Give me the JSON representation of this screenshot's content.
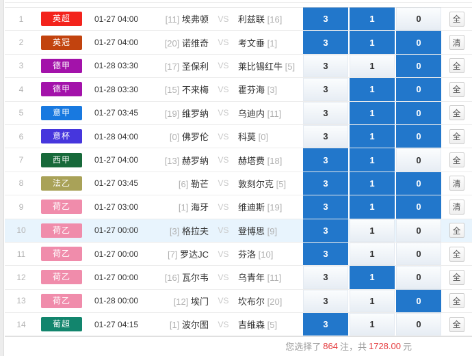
{
  "colors": {
    "cell-selected": "#2277cb",
    "row-highlight": "#e8f4fd",
    "footer-red": "#e4393c"
  },
  "labels": {
    "vs": "VS",
    "odds": [
      "3",
      "1",
      "0"
    ]
  },
  "rows": [
    {
      "num": "1",
      "league": "英超",
      "league_color": "#f3231c",
      "time": "01-27 04:00",
      "home_rank": "[11]",
      "home": "埃弗顿",
      "away": "利兹联",
      "away_rank": "[16]",
      "selected": [
        true,
        true,
        false
      ],
      "action": "全",
      "highlight": false
    },
    {
      "num": "2",
      "league": "英冠",
      "league_color": "#c2430e",
      "time": "01-27 04:00",
      "home_rank": "[20]",
      "home": "诺维奇",
      "away": "考文垂",
      "away_rank": "[1]",
      "selected": [
        true,
        true,
        true
      ],
      "action": "清",
      "highlight": false
    },
    {
      "num": "3",
      "league": "德甲",
      "league_color": "#a312aa",
      "time": "01-28 03:30",
      "home_rank": "[17]",
      "home": "圣保利",
      "away": "莱比锡红牛",
      "away_rank": "[5]",
      "selected": [
        false,
        false,
        true
      ],
      "action": "全",
      "highlight": false
    },
    {
      "num": "4",
      "league": "德甲",
      "league_color": "#a312aa",
      "time": "01-28 03:30",
      "home_rank": "[15]",
      "home": "不来梅",
      "away": "霍芬海",
      "away_rank": "[3]",
      "selected": [
        false,
        true,
        true
      ],
      "action": "全",
      "highlight": false
    },
    {
      "num": "5",
      "league": "意甲",
      "league_color": "#1879e0",
      "time": "01-27 03:45",
      "home_rank": "[19]",
      "home": "维罗纳",
      "away": "乌迪内",
      "away_rank": "[11]",
      "selected": [
        false,
        true,
        true
      ],
      "action": "全",
      "highlight": false
    },
    {
      "num": "6",
      "league": "意杯",
      "league_color": "#4636dd",
      "time": "01-28 04:00",
      "home_rank": "[0]",
      "home": "佛罗伦",
      "away": "科莫",
      "away_rank": "[0]",
      "selected": [
        false,
        true,
        true
      ],
      "action": "全",
      "highlight": false
    },
    {
      "num": "7",
      "league": "西甲",
      "league_color": "#17693a",
      "time": "01-27 04:00",
      "home_rank": "[13]",
      "home": "赫罗纳",
      "away": "赫塔费",
      "away_rank": "[18]",
      "selected": [
        true,
        true,
        false
      ],
      "action": "全",
      "highlight": false
    },
    {
      "num": "8",
      "league": "法乙",
      "league_color": "#a9a258",
      "time": "01-27 03:45",
      "home_rank": "[6]",
      "home": "勒芒",
      "away": "敦刻尔克",
      "away_rank": "[5]",
      "selected": [
        true,
        true,
        true
      ],
      "action": "清",
      "highlight": false
    },
    {
      "num": "9",
      "league": "荷乙",
      "league_color": "#f08cab",
      "time": "01-27 03:00",
      "home_rank": "[1]",
      "home": "海牙",
      "away": "维迪斯",
      "away_rank": "[19]",
      "selected": [
        true,
        true,
        true
      ],
      "action": "清",
      "highlight": false
    },
    {
      "num": "10",
      "league": "荷乙",
      "league_color": "#f08cab",
      "time": "01-27 00:00",
      "home_rank": "[3]",
      "home": "格拉夫",
      "away": "登博思",
      "away_rank": "[9]",
      "selected": [
        true,
        false,
        false
      ],
      "action": "全",
      "highlight": true
    },
    {
      "num": "11",
      "league": "荷乙",
      "league_color": "#f08cab",
      "time": "01-27 00:00",
      "home_rank": "[7]",
      "home": "罗达JC",
      "away": "芬洛",
      "away_rank": "[10]",
      "selected": [
        true,
        false,
        false
      ],
      "action": "全",
      "highlight": false
    },
    {
      "num": "12",
      "league": "荷乙",
      "league_color": "#f08cab",
      "time": "01-27 00:00",
      "home_rank": "[16]",
      "home": "瓦尔韦",
      "away": "乌青年",
      "away_rank": "[11]",
      "selected": [
        false,
        true,
        false
      ],
      "action": "全",
      "highlight": false
    },
    {
      "num": "13",
      "league": "荷乙",
      "league_color": "#f08cab",
      "time": "01-28 00:00",
      "home_rank": "[12]",
      "home": "埃门",
      "away": "坎布尔",
      "away_rank": "[20]",
      "selected": [
        false,
        false,
        true
      ],
      "action": "全",
      "highlight": false
    },
    {
      "num": "14",
      "league": "葡超",
      "league_color": "#12856d",
      "time": "01-27 04:15",
      "home_rank": "[1]",
      "home": "波尔图",
      "away": "吉维森",
      "away_rank": "[5]",
      "selected": [
        true,
        false,
        false
      ],
      "action": "全",
      "highlight": false
    }
  ],
  "footer": {
    "prefix": "您选择了",
    "count": "864",
    "mid": "注，共",
    "amount": "1728.00",
    "suffix": "元"
  }
}
